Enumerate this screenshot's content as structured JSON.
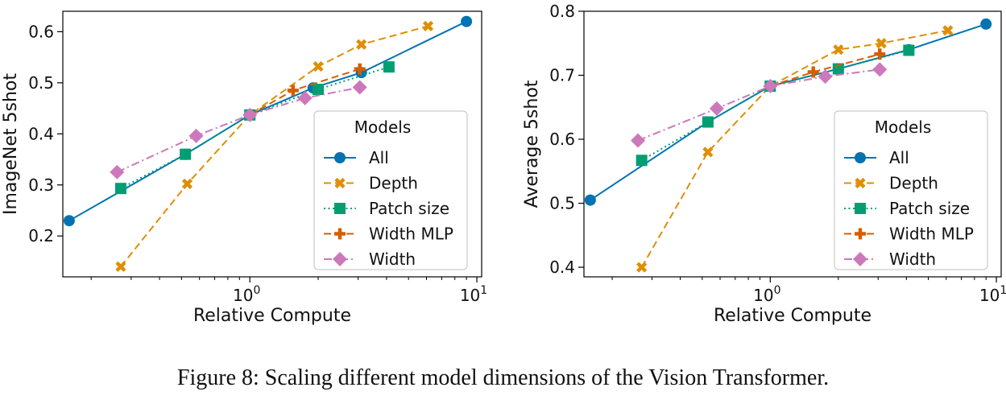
{
  "caption": "Figure 8: Scaling different model dimensions of the Vision Transformer.",
  "chart_data": [
    {
      "type": "line",
      "xscale": "log",
      "xlabel": "Relative Compute",
      "ylabel": "ImageNet 5shot",
      "xlim": [
        0.15,
        10.5
      ],
      "ylim": [
        0.12,
        0.64
      ],
      "xticks": [
        {
          "value": 1,
          "base": "10",
          "exp": "0"
        },
        {
          "value": 10,
          "base": "10",
          "exp": "1"
        }
      ],
      "yticks": [
        {
          "value": 0.2,
          "label": "0.2"
        },
        {
          "value": 0.3,
          "label": "0.3"
        },
        {
          "value": 0.4,
          "label": "0.4"
        },
        {
          "value": 0.5,
          "label": "0.5"
        },
        {
          "value": 0.6,
          "label": "0.6"
        }
      ],
      "legend_title": "Models",
      "legend_position": "lower-right",
      "series": [
        {
          "name": "All",
          "color": "#0173b2",
          "marker": "circle",
          "dash": "solid",
          "points": [
            [
              0.16,
              0.23
            ],
            [
              0.52,
              0.36
            ],
            [
              1.0,
              0.437
            ],
            [
              1.9,
              0.49
            ],
            [
              3.1,
              0.52
            ],
            [
              9.0,
              0.62
            ]
          ]
        },
        {
          "name": "Depth",
          "color": "#de8f05",
          "marker": "x",
          "dash": "dashed",
          "points": [
            [
              0.27,
              0.14
            ],
            [
              0.53,
              0.302
            ],
            [
              1.0,
              0.437
            ],
            [
              2.0,
              0.532
            ],
            [
              3.1,
              0.575
            ],
            [
              6.1,
              0.611
            ]
          ]
        },
        {
          "name": "Patch size",
          "color": "#029e73",
          "marker": "square",
          "dash": "dotted",
          "points": [
            [
              0.27,
              0.293
            ],
            [
              0.52,
              0.36
            ],
            [
              1.0,
              0.437
            ],
            [
              2.0,
              0.487
            ],
            [
              4.1,
              0.531
            ]
          ]
        },
        {
          "name": "Width MLP",
          "color": "#d55e00",
          "marker": "plus",
          "dash": "dashed",
          "points": [
            [
              1.0,
              0.437
            ],
            [
              1.55,
              0.485
            ],
            [
              3.05,
              0.527
            ]
          ]
        },
        {
          "name": "Width",
          "color": "#cc78bc",
          "marker": "diamond",
          "dash": "dashdot",
          "points": [
            [
              0.26,
              0.325
            ],
            [
              0.58,
              0.396
            ],
            [
              1.0,
              0.437
            ],
            [
              1.75,
              0.47
            ],
            [
              3.05,
              0.491
            ]
          ]
        }
      ]
    },
    {
      "type": "line",
      "xscale": "log",
      "xlabel": "Relative Compute",
      "ylabel": "Average 5shot",
      "xlim": [
        0.15,
        10.5
      ],
      "ylim": [
        0.385,
        0.8
      ],
      "xticks": [
        {
          "value": 1,
          "base": "10",
          "exp": "0"
        },
        {
          "value": 10,
          "base": "10",
          "exp": "1"
        }
      ],
      "yticks": [
        {
          "value": 0.4,
          "label": "0.4"
        },
        {
          "value": 0.5,
          "label": "0.5"
        },
        {
          "value": 0.6,
          "label": "0.6"
        },
        {
          "value": 0.7,
          "label": "0.7"
        },
        {
          "value": 0.8,
          "label": "0.8"
        }
      ],
      "legend_title": "Models",
      "legend_position": "lower-right",
      "series": [
        {
          "name": "All",
          "color": "#0173b2",
          "marker": "circle",
          "dash": "solid",
          "points": [
            [
              0.16,
              0.505
            ],
            [
              0.53,
              0.627
            ],
            [
              1.0,
              0.683
            ],
            [
              2.0,
              0.71
            ],
            [
              4.1,
              0.74
            ],
            [
              9.0,
              0.78
            ]
          ]
        },
        {
          "name": "Depth",
          "color": "#de8f05",
          "marker": "x",
          "dash": "dashed",
          "points": [
            [
              0.27,
              0.4
            ],
            [
              0.53,
              0.58
            ],
            [
              1.0,
              0.683
            ],
            [
              2.0,
              0.74
            ],
            [
              3.1,
              0.75
            ],
            [
              6.1,
              0.77
            ]
          ]
        },
        {
          "name": "Patch size",
          "color": "#029e73",
          "marker": "square",
          "dash": "dotted",
          "points": [
            [
              0.27,
              0.567
            ],
            [
              0.53,
              0.627
            ],
            [
              1.0,
              0.683
            ],
            [
              2.0,
              0.71
            ],
            [
              4.1,
              0.739
            ]
          ]
        },
        {
          "name": "Width MLP",
          "color": "#d55e00",
          "marker": "plus",
          "dash": "dashed",
          "points": [
            [
              1.0,
              0.683
            ],
            [
              1.55,
              0.705
            ],
            [
              3.05,
              0.733
            ]
          ]
        },
        {
          "name": "Width",
          "color": "#cc78bc",
          "marker": "diamond",
          "dash": "dashdot",
          "points": [
            [
              0.26,
              0.598
            ],
            [
              0.58,
              0.648
            ],
            [
              1.0,
              0.683
            ],
            [
              1.75,
              0.698
            ],
            [
              3.05,
              0.709
            ]
          ]
        }
      ]
    }
  ]
}
